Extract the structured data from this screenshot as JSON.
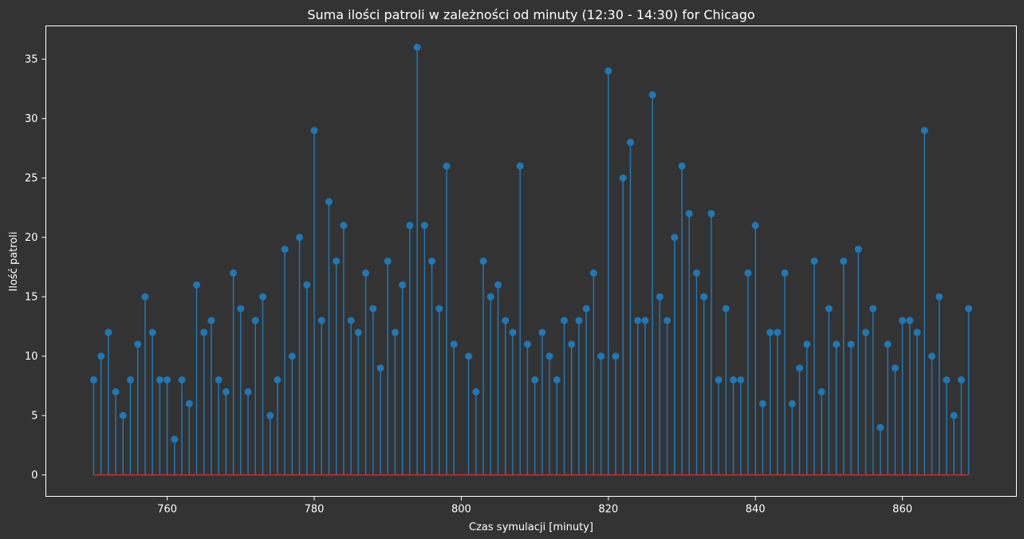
{
  "chart_data": {
    "type": "stem",
    "title": "Suma ilości patroli w zależności od minuty (12:30 - 14:30) for Chicago",
    "xlabel": "Czas symulacji [minuty]",
    "ylabel": "Ilość patroli",
    "xlim": [
      743.5,
      875.5
    ],
    "ylim": [
      -1.8,
      37.8
    ],
    "xticks": [
      760,
      780,
      800,
      820,
      840,
      860
    ],
    "yticks": [
      0,
      5,
      10,
      15,
      20,
      25,
      30,
      35
    ],
    "grid": false,
    "colors": {
      "stem": "#1f77b4",
      "baseline": "#d62728",
      "background": "#333333",
      "text": "#ffffff"
    },
    "x_start": 750,
    "values": [
      8,
      10,
      12,
      7,
      5,
      8,
      11,
      15,
      12,
      8,
      8,
      3,
      8,
      6,
      16,
      12,
      13,
      8,
      7,
      17,
      14,
      7,
      13,
      15,
      5,
      8,
      19,
      10,
      20,
      16,
      29,
      13,
      23,
      18,
      21,
      13,
      12,
      17,
      14,
      9,
      18,
      12,
      16,
      21,
      36,
      21,
      18,
      14,
      26,
      11,
      10,
      7,
      18,
      15,
      16,
      13,
      12,
      26,
      11,
      8,
      12,
      10,
      8,
      13,
      11,
      13,
      14,
      17,
      10,
      34,
      10,
      25,
      28,
      13,
      13,
      32,
      15,
      13,
      20,
      26,
      22,
      17,
      15,
      22,
      8,
      14,
      8,
      8,
      17,
      21,
      6,
      12,
      12,
      17,
      6,
      9,
      11,
      18,
      7,
      14,
      11,
      18,
      11,
      19,
      12,
      14,
      4,
      11,
      9,
      13,
      13,
      12,
      29,
      10,
      15,
      8,
      5,
      8,
      14
    ],
    "missing_x": [
      800
    ]
  }
}
